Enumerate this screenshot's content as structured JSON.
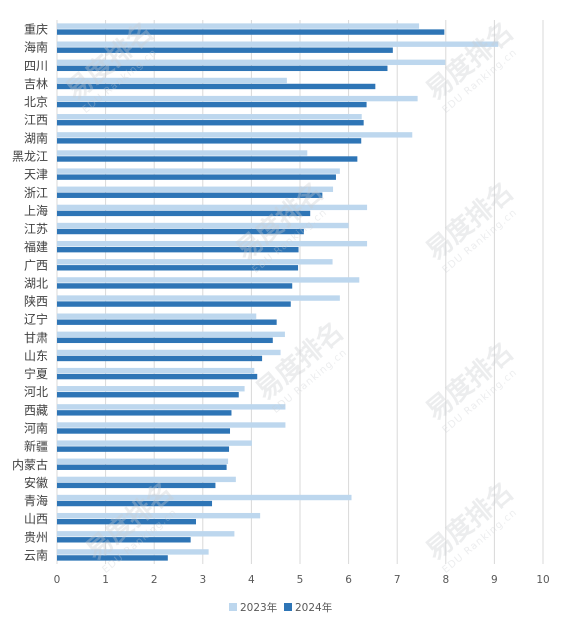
{
  "chart_data": {
    "type": "bar",
    "orientation": "horizontal",
    "categories": [
      "重庆",
      "海南",
      "四川",
      "吉林",
      "北京",
      "江西",
      "湖南",
      "黑龙江",
      "天津",
      "浙江",
      "上海",
      "江苏",
      "福建",
      "广西",
      "湖北",
      "陕西",
      "辽宁",
      "甘肃",
      "山东",
      "宁夏",
      "河北",
      "西藏",
      "河南",
      "新疆",
      "内蒙古",
      "安徽",
      "青海",
      "山西",
      "贵州",
      "云南"
    ],
    "series": [
      {
        "name": "2023年",
        "color": "#bdd7ee",
        "values": [
          7.45,
          9.08,
          7.99,
          4.73,
          7.42,
          6.27,
          7.31,
          5.15,
          5.82,
          5.68,
          6.38,
          6.0,
          6.38,
          5.67,
          6.22,
          5.82,
          4.1,
          4.69,
          4.6,
          4.06,
          3.86,
          4.7,
          4.7,
          4.01,
          3.52,
          3.68,
          6.06,
          4.18,
          3.65,
          3.12
        ]
      },
      {
        "name": "2024年",
        "color": "#2e75b6",
        "values": [
          7.97,
          6.91,
          6.8,
          6.55,
          6.37,
          6.31,
          6.26,
          6.18,
          5.74,
          5.46,
          5.21,
          5.08,
          4.97,
          4.96,
          4.84,
          4.81,
          4.52,
          4.44,
          4.22,
          4.12,
          3.74,
          3.59,
          3.56,
          3.54,
          3.49,
          3.26,
          3.19,
          2.86,
          2.75,
          2.28
        ]
      }
    ],
    "xlim": [
      0,
      10
    ],
    "x_ticks": [
      "0",
      "1",
      "2",
      "3",
      "4",
      "5",
      "6",
      "7",
      "8",
      "9",
      "10"
    ],
    "grid": true,
    "legend_position": "bottom"
  },
  "watermark": {
    "text": "易度排名",
    "sub": "EDU Ranking.cn"
  }
}
